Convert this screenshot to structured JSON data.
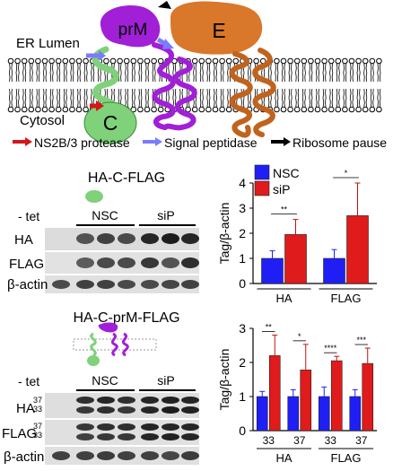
{
  "diagram": {
    "er_lumen": "ER Lumen",
    "cytosol": "Cytosol",
    "prm_label": "prM",
    "e_label": "E",
    "c_label": "C",
    "legend": [
      {
        "label": "NS2B/3 protease",
        "color": "#d4161c"
      },
      {
        "label": "Signal peptidase",
        "color": "#7b7bff"
      },
      {
        "label": "Ribosome pause",
        "color": "#000000"
      }
    ],
    "colors": {
      "capsid": "#7fd17a",
      "prm": "#a11fd6",
      "envelope": "#d9772b",
      "lipid": "#000000"
    }
  },
  "panel_top": {
    "construct": "HA-C-FLAG",
    "minus_tet": "- tet",
    "group_nsc": "NSC",
    "group_sip": "siP",
    "rows": [
      "HA",
      "FLAG",
      "β-actin"
    ]
  },
  "panel_bottom": {
    "construct": "HA-C-prM-FLAG",
    "minus_tet": "- tet",
    "group_nsc": "NSC",
    "group_sip": "siP",
    "rows": [
      {
        "label": "HA",
        "kda_top": "37",
        "kda_bottom": "33"
      },
      {
        "label": "FLAG",
        "kda_top": "37",
        "kda_bottom": "33"
      },
      {
        "label": "β-actin",
        "kda_top": "",
        "kda_bottom": ""
      }
    ]
  },
  "chart_data": [
    {
      "type": "bar",
      "ylabel": "Tag/β-actin",
      "ylim": [
        0,
        4
      ],
      "yticks": [
        "0",
        "1",
        "2",
        "3",
        "4"
      ],
      "categories": [
        "HA",
        "FLAG"
      ],
      "legend": [
        {
          "name": "NSC",
          "color": "#1f1ff5"
        },
        {
          "name": "siP",
          "color": "#e01b1b"
        }
      ],
      "series": [
        {
          "name": "NSC",
          "values": [
            1.0,
            1.0
          ],
          "errors": [
            0.3,
            0.35
          ],
          "color": "#1f1ff5"
        },
        {
          "name": "siP",
          "values": [
            1.95,
            2.7
          ],
          "errors": [
            0.6,
            1.3
          ],
          "color": "#e01b1b"
        }
      ],
      "significance": [
        "**",
        "*"
      ]
    },
    {
      "type": "bar",
      "ylabel": "Tag/β-actin",
      "ylim": [
        0,
        3
      ],
      "yticks": [
        "0",
        "1",
        "2",
        "3"
      ],
      "categories": [
        "33",
        "37",
        "33",
        "37"
      ],
      "groups": [
        "HA",
        "FLAG"
      ],
      "series": [
        {
          "name": "NSC",
          "values": [
            1.0,
            1.0,
            1.0,
            1.0
          ],
          "errors": [
            0.15,
            0.2,
            0.28,
            0.2
          ],
          "color": "#1f1ff5"
        },
        {
          "name": "siP",
          "values": [
            2.2,
            1.78,
            2.05,
            1.97
          ],
          "errors": [
            0.6,
            0.75,
            0.13,
            0.45
          ],
          "color": "#e01b1b"
        }
      ],
      "significance": [
        "**",
        "*",
        "****",
        "***"
      ]
    }
  ]
}
